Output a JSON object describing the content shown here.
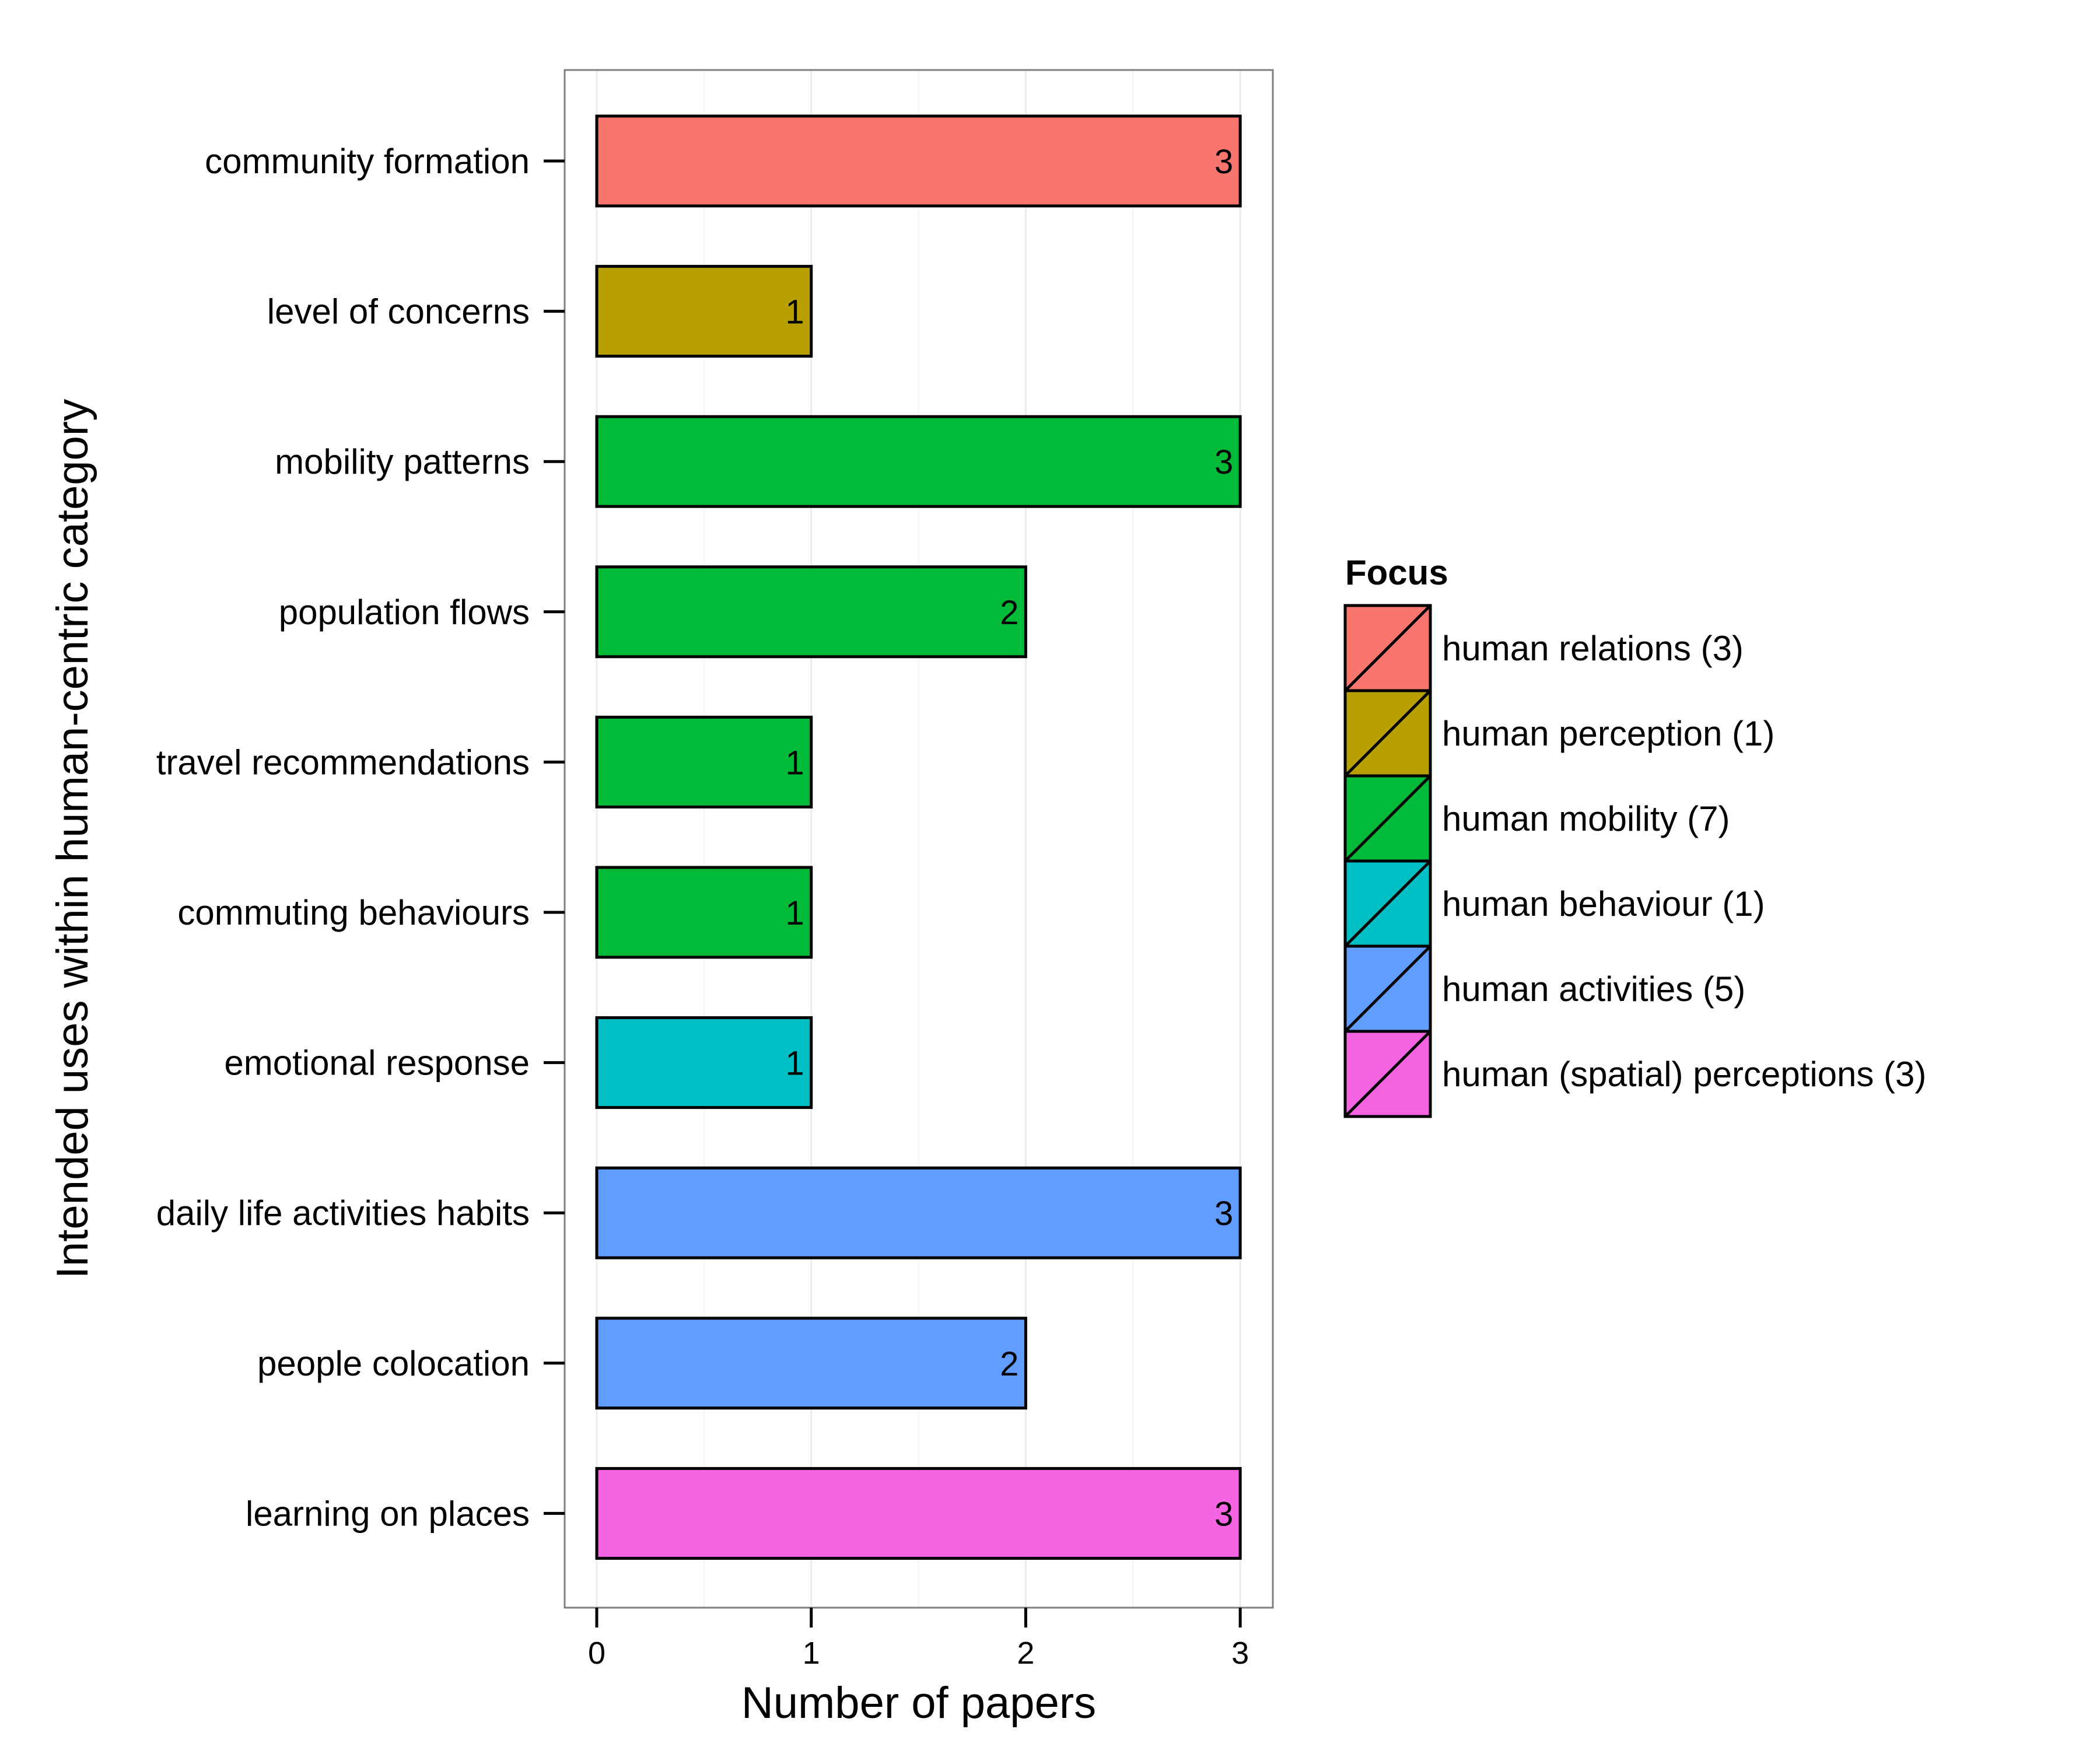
{
  "chart_data": {
    "type": "bar",
    "orientation": "horizontal",
    "xlabel": "Number of papers",
    "ylabel": "Intended uses within human-centric category",
    "xlim": [
      0,
      3
    ],
    "x_ticks": [
      "0",
      "1",
      "2",
      "3"
    ],
    "grid": true,
    "legend_position": "right",
    "categories": [
      "community formation",
      "level of concerns",
      "mobility patterns",
      "population flows",
      "travel recommendations",
      "commuting behaviours",
      "emotional response",
      "daily life activities habits",
      "people colocation",
      "learning on places"
    ],
    "values": [
      3,
      1,
      3,
      2,
      1,
      1,
      1,
      3,
      2,
      3
    ],
    "value_labels": [
      "3",
      "1",
      "3",
      "2",
      "1",
      "1",
      "1",
      "3",
      "2",
      "3"
    ],
    "focus": [
      "human relations (3)",
      "human perception (1)",
      "human mobility (7)",
      "human mobility (7)",
      "human mobility (7)",
      "human mobility (7)",
      "human behaviour (1)",
      "human activities (5)",
      "human activities (5)",
      "human (spatial) perceptions (3)"
    ],
    "legend": {
      "title": "Focus",
      "entries": [
        {
          "label": "human relations (3)",
          "color": "#F8766D"
        },
        {
          "label": "human perception (1)",
          "color": "#B79F00"
        },
        {
          "label": "human mobility (7)",
          "color": "#00BA38"
        },
        {
          "label": "human behaviour (1)",
          "color": "#00BFC4"
        },
        {
          "label": "human activities (5)",
          "color": "#619CFF"
        },
        {
          "label": "human (spatial) perceptions (3)",
          "color": "#F564E3"
        }
      ]
    }
  }
}
